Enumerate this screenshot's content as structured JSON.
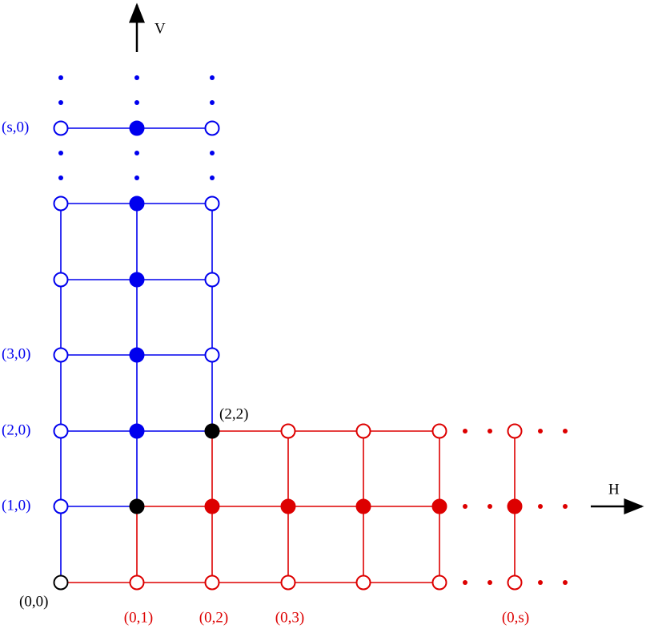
{
  "axes": {
    "vertical": "V",
    "horizontal": "H"
  },
  "row_labels": [
    "(s,0)",
    "(3,0)",
    "(2,0)",
    "(1,0)"
  ],
  "origin_label": "(0,0)",
  "corner_label": "(2,2)",
  "column_labels": [
    "(0,1)",
    "(0,2)",
    "(0,3)",
    "(0,s)"
  ]
}
